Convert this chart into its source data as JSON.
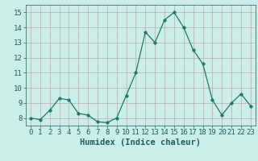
{
  "x": [
    0,
    1,
    2,
    3,
    4,
    5,
    6,
    7,
    8,
    9,
    10,
    11,
    12,
    13,
    14,
    15,
    16,
    17,
    18,
    19,
    20,
    21,
    22,
    23
  ],
  "y": [
    8.0,
    7.9,
    8.5,
    9.3,
    9.2,
    8.3,
    8.2,
    7.75,
    7.7,
    8.0,
    9.5,
    11.0,
    13.7,
    13.0,
    14.5,
    15.0,
    14.0,
    12.5,
    11.6,
    9.2,
    8.2,
    9.0,
    9.6,
    8.8
  ],
  "line_color": "#1a7a6a",
  "marker": "o",
  "marker_size": 2.5,
  "bg_color": "#cceee8",
  "grid_color": "#c0a8a8",
  "xlabel": "Humidex (Indice chaleur)",
  "ylim": [
    7.5,
    15.5
  ],
  "xlim": [
    -0.5,
    23.5
  ],
  "yticks": [
    8,
    9,
    10,
    11,
    12,
    13,
    14,
    15
  ],
  "xticks": [
    0,
    1,
    2,
    3,
    4,
    5,
    6,
    7,
    8,
    9,
    10,
    11,
    12,
    13,
    14,
    15,
    16,
    17,
    18,
    19,
    20,
    21,
    22,
    23
  ],
  "tick_fontsize": 6.5,
  "xlabel_fontsize": 7.5,
  "tick_color": "#1a6060",
  "label_color": "#1a6060"
}
